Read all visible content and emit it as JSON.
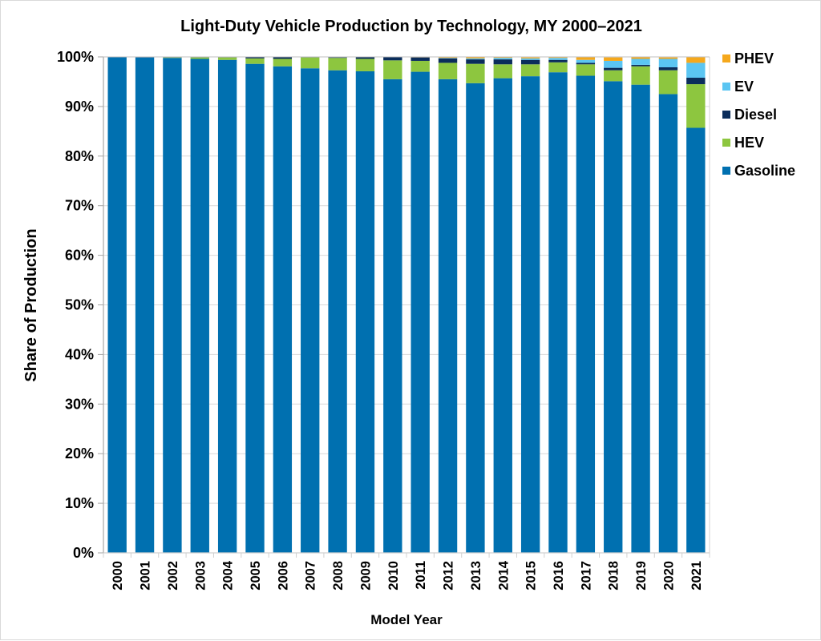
{
  "chart_data": {
    "type": "bar",
    "stacked": true,
    "title": "Light-Duty Vehicle Production by Technology, MY 2000–2021",
    "xlabel": "Model Year",
    "ylabel": "Share of Production",
    "ylim": [
      0,
      100
    ],
    "yticks": [
      "0%",
      "10%",
      "20%",
      "30%",
      "40%",
      "50%",
      "60%",
      "70%",
      "80%",
      "90%",
      "100%"
    ],
    "ytick_values": [
      0,
      10,
      20,
      30,
      40,
      50,
      60,
      70,
      80,
      90,
      100
    ],
    "grid": "horizontal",
    "legend_position": "right-top",
    "categories": [
      "2000",
      "2001",
      "2002",
      "2003",
      "2004",
      "2005",
      "2006",
      "2007",
      "2008",
      "2009",
      "2010",
      "2011",
      "2012",
      "2013",
      "2014",
      "2015",
      "2016",
      "2017",
      "2018",
      "2019",
      "2020",
      "2021"
    ],
    "series": [
      {
        "name": "Gasoline",
        "color": "#0070B0",
        "values": [
          100.0,
          99.9,
          99.8,
          99.6,
          99.4,
          98.6,
          98.1,
          97.7,
          97.3,
          97.1,
          95.5,
          97.0,
          95.5,
          94.7,
          95.7,
          96.1,
          96.9,
          96.2,
          95.1,
          94.4,
          92.5,
          85.7
        ]
      },
      {
        "name": "HEV",
        "color": "#8DC63F",
        "values": [
          0.0,
          0.0,
          0.1,
          0.3,
          0.5,
          1.1,
          1.5,
          2.2,
          2.5,
          2.5,
          3.8,
          2.2,
          3.3,
          3.9,
          2.8,
          2.4,
          2.0,
          2.3,
          2.2,
          3.7,
          4.8,
          8.8
        ]
      },
      {
        "name": "Diesel",
        "color": "#0B2D5B",
        "values": [
          0.0,
          0.1,
          0.1,
          0.1,
          0.1,
          0.3,
          0.4,
          0.1,
          0.1,
          0.4,
          0.7,
          0.7,
          0.9,
          0.9,
          1.0,
          0.9,
          0.5,
          0.3,
          0.5,
          0.3,
          0.6,
          1.3
        ]
      },
      {
        "name": "EV",
        "color": "#5BC5F2",
        "values": [
          0.0,
          0.0,
          0.0,
          0.0,
          0.0,
          0.0,
          0.0,
          0.0,
          0.0,
          0.0,
          0.0,
          0.0,
          0.1,
          0.2,
          0.3,
          0.3,
          0.4,
          0.6,
          1.4,
          1.2,
          1.7,
          3.0
        ]
      },
      {
        "name": "PHEV",
        "color": "#F5A81C",
        "values": [
          0.0,
          0.0,
          0.0,
          0.0,
          0.0,
          0.0,
          0.0,
          0.0,
          0.0,
          0.0,
          0.0,
          0.1,
          0.2,
          0.3,
          0.3,
          0.2,
          0.2,
          0.6,
          0.7,
          0.4,
          0.3,
          1.2
        ]
      }
    ],
    "legend_order": [
      "PHEV",
      "EV",
      "Diesel",
      "HEV",
      "Gasoline"
    ],
    "colors": {
      "gridline": "#d9d9d9",
      "axis": "#a6a6a6"
    }
  }
}
